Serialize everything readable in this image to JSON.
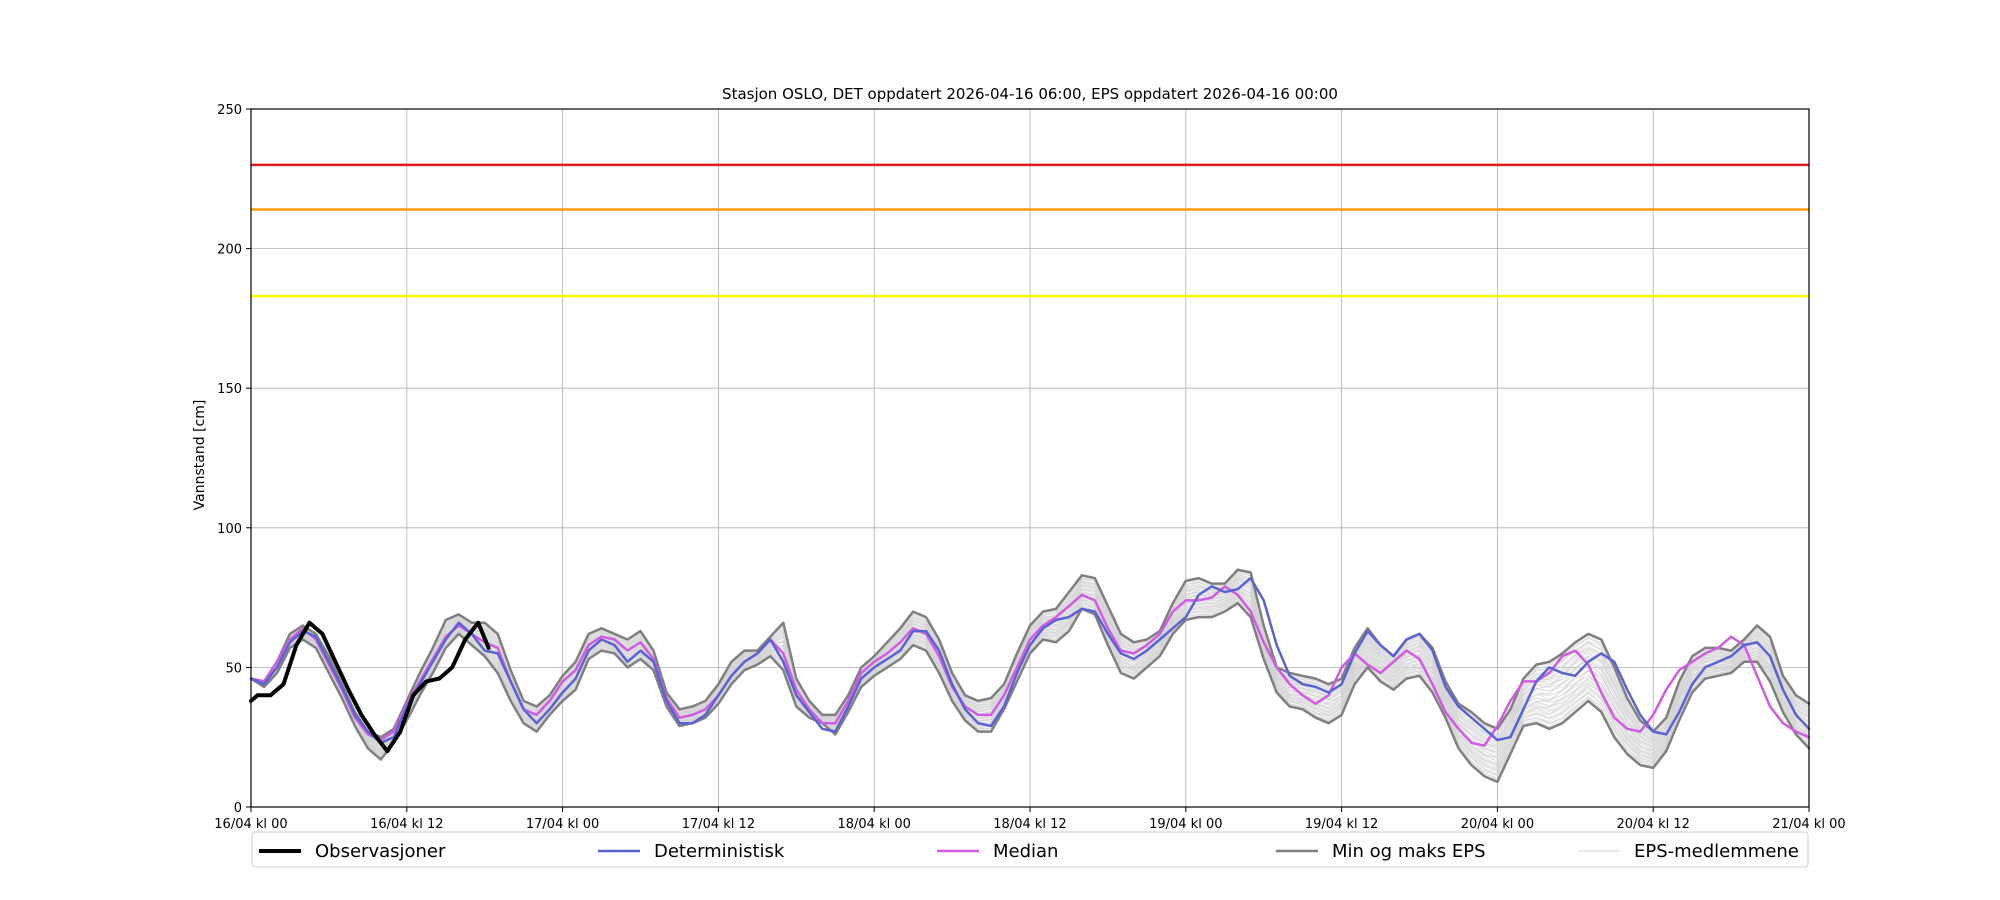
{
  "chart_data": {
    "type": "line",
    "title": "Stasjon OSLO, DET oppdatert 2026-04-16 06:00, EPS oppdatert 2026-04-16 00:00",
    "xlabel": "",
    "ylabel": "Vannstand [cm]",
    "ylim": [
      0,
      250
    ],
    "yticks": [
      0,
      50,
      100,
      150,
      200,
      250
    ],
    "xlim_hours": [
      0,
      120
    ],
    "x_unit": "hours",
    "xticks": [
      {
        "hour": 0,
        "label": "16/04 kl 00"
      },
      {
        "hour": 12,
        "label": "16/04 kl 12"
      },
      {
        "hour": 24,
        "label": "17/04 kl 00"
      },
      {
        "hour": 36,
        "label": "17/04 kl 12"
      },
      {
        "hour": 48,
        "label": "18/04 kl 00"
      },
      {
        "hour": 60,
        "label": "18/04 kl 12"
      },
      {
        "hour": 72,
        "label": "19/04 kl 00"
      },
      {
        "hour": 84,
        "label": "19/04 kl 12"
      },
      {
        "hour": 96,
        "label": "20/04 kl 00"
      },
      {
        "hour": 108,
        "label": "20/04 kl 12"
      },
      {
        "hour": 120,
        "label": "21/04 kl 00"
      }
    ],
    "grid": true,
    "legend_position": "bottom",
    "thresholds": [
      {
        "value": 230,
        "color": "#e31a1c"
      },
      {
        "value": 214,
        "color": "#ff9900"
      },
      {
        "value": 183,
        "color": "#ffff00"
      }
    ],
    "series": [
      {
        "name": "Observasjoner",
        "color": "#000000",
        "width": 4,
        "x": [
          0,
          0.5,
          1.5,
          2.5,
          3.5,
          4.5,
          5.5,
          6.5,
          7.5,
          8.5,
          9.5,
          10.5,
          11.5,
          12.5,
          13.5,
          14.5,
          15.5,
          16.5,
          17.5,
          18.3
        ],
        "values": [
          38,
          40,
          40,
          44,
          58,
          66,
          62,
          52,
          42,
          33,
          26,
          20,
          27,
          40,
          45,
          46,
          50,
          60,
          66,
          57
        ]
      },
      {
        "name": "Deterministisk",
        "color": "#5b63d4",
        "width": 2.5,
        "x": [
          0,
          1,
          2,
          3,
          4,
          5,
          6,
          7,
          8,
          9,
          10,
          11,
          12,
          13,
          14,
          15,
          16,
          17,
          18,
          19,
          20,
          21,
          22,
          23,
          24,
          25,
          26,
          27,
          28,
          29,
          30,
          31,
          32,
          33,
          34,
          35,
          36,
          37,
          38,
          39,
          40,
          41,
          42,
          43,
          44,
          45,
          46,
          47,
          48,
          49,
          50,
          51,
          52,
          53,
          54,
          55,
          56,
          57,
          58,
          59,
          60,
          61,
          62,
          63,
          64,
          65,
          66,
          67,
          68,
          69,
          70,
          71,
          72,
          73,
          74,
          75,
          76,
          77,
          78,
          79,
          80,
          81,
          82,
          83,
          84,
          85,
          86,
          87,
          88,
          89,
          90,
          91,
          92,
          93,
          94,
          95,
          96,
          97,
          98,
          99,
          100,
          101,
          102,
          103,
          104,
          105,
          106,
          107,
          108,
          109,
          110,
          111,
          112,
          113,
          114,
          115,
          116,
          117,
          118,
          119,
          120
        ],
        "values": [
          46,
          44,
          50,
          59,
          63,
          61,
          52,
          43,
          33,
          27,
          23,
          25,
          36,
          44,
          52,
          60,
          66,
          62,
          56,
          55,
          45,
          35,
          30,
          35,
          41,
          46,
          56,
          60,
          58,
          52,
          56,
          52,
          38,
          30,
          30,
          33,
          40,
          47,
          52,
          55,
          60,
          52,
          40,
          34,
          28,
          27,
          36,
          46,
          50,
          53,
          56,
          63,
          63,
          56,
          44,
          35,
          30,
          29,
          36,
          48,
          58,
          64,
          67,
          68,
          71,
          70,
          62,
          55,
          53,
          56,
          60,
          64,
          68,
          76,
          79,
          77,
          78,
          82,
          74,
          58,
          47,
          44,
          43,
          41,
          44,
          55,
          63,
          58,
          54,
          60,
          62,
          56,
          43,
          36,
          32,
          28,
          24,
          25,
          35,
          45,
          50,
          48,
          47,
          52,
          55,
          52,
          42,
          33,
          27,
          26,
          34,
          44,
          50,
          52,
          54,
          58,
          59,
          54,
          42,
          33,
          28
        ]
      },
      {
        "name": "Median",
        "color": "#d05ce3",
        "width": 2.5,
        "x": [
          0,
          1,
          2,
          3,
          4,
          5,
          6,
          7,
          8,
          9,
          10,
          11,
          12,
          13,
          14,
          15,
          16,
          17,
          18,
          19,
          20,
          21,
          22,
          23,
          24,
          25,
          26,
          27,
          28,
          29,
          30,
          31,
          32,
          33,
          34,
          35,
          36,
          37,
          38,
          39,
          40,
          41,
          42,
          43,
          44,
          45,
          46,
          47,
          48,
          49,
          50,
          51,
          52,
          53,
          54,
          55,
          56,
          57,
          58,
          59,
          60,
          61,
          62,
          63,
          64,
          65,
          66,
          67,
          68,
          69,
          70,
          71,
          72,
          73,
          74,
          75,
          76,
          77,
          78,
          79,
          80,
          81,
          82,
          83,
          84,
          85,
          86,
          87,
          88,
          89,
          90,
          91,
          92,
          93,
          94,
          95,
          96,
          97,
          98,
          99,
          100,
          101,
          102,
          103,
          104,
          105,
          106,
          107,
          108,
          109,
          110,
          111,
          112,
          113,
          114,
          115,
          116,
          117,
          118,
          119,
          120
        ],
        "values": [
          46,
          45,
          52,
          60,
          64,
          60,
          51,
          42,
          32,
          26,
          24,
          27,
          37,
          45,
          53,
          61,
          65,
          62,
          59,
          57,
          45,
          35,
          33,
          38,
          45,
          49,
          58,
          61,
          60,
          56,
          59,
          53,
          39,
          32,
          33,
          35,
          40,
          47,
          52,
          55,
          60,
          55,
          42,
          35,
          30,
          30,
          38,
          48,
          52,
          55,
          59,
          64,
          62,
          54,
          43,
          36,
          33,
          33,
          40,
          50,
          60,
          65,
          68,
          72,
          76,
          74,
          64,
          56,
          55,
          58,
          62,
          70,
          74,
          74,
          75,
          79,
          76,
          70,
          59,
          50,
          44,
          40,
          37,
          40,
          50,
          55,
          51,
          48,
          52,
          56,
          53,
          44,
          34,
          28,
          23,
          22,
          29,
          38,
          45,
          45,
          48,
          54,
          56,
          51,
          41,
          32,
          28,
          27,
          33,
          42,
          49,
          52,
          55,
          57,
          61,
          58,
          47,
          36,
          30,
          27,
          25
        ]
      },
      {
        "name": "Min og maks EPS",
        "color": "#808080",
        "width": 2.5,
        "x": [
          0,
          1,
          2,
          3,
          4,
          5,
          6,
          7,
          8,
          9,
          10,
          11,
          12,
          13,
          14,
          15,
          16,
          17,
          18,
          19,
          20,
          21,
          22,
          23,
          24,
          25,
          26,
          27,
          28,
          29,
          30,
          31,
          32,
          33,
          34,
          35,
          36,
          37,
          38,
          39,
          40,
          41,
          42,
          43,
          44,
          45,
          46,
          47,
          48,
          49,
          50,
          51,
          52,
          53,
          54,
          55,
          56,
          57,
          58,
          59,
          60,
          61,
          62,
          63,
          64,
          65,
          66,
          67,
          68,
          69,
          70,
          71,
          72,
          73,
          74,
          75,
          76,
          77,
          78,
          79,
          80,
          81,
          82,
          83,
          84,
          85,
          86,
          87,
          88,
          89,
          90,
          91,
          92,
          93,
          94,
          95,
          96,
          97,
          98,
          99,
          100,
          101,
          102,
          103,
          104,
          105,
          106,
          107,
          108,
          109,
          110,
          111,
          112,
          113,
          114,
          115,
          116,
          117,
          118,
          119,
          120
        ],
        "values": [
          46,
          45,
          52,
          62,
          65,
          62,
          54,
          44,
          34,
          27,
          25,
          28,
          38,
          48,
          57,
          67,
          69,
          66,
          66,
          62,
          49,
          38,
          36,
          40,
          47,
          52,
          62,
          64,
          62,
          60,
          63,
          56,
          41,
          35,
          36,
          38,
          44,
          52,
          56,
          56,
          61,
          66,
          46,
          38,
          33,
          33,
          40,
          50,
          54,
          59,
          64,
          70,
          68,
          60,
          48,
          40,
          38,
          39,
          44,
          55,
          65,
          70,
          71,
          77,
          83,
          82,
          72,
          62,
          59,
          60,
          63,
          73,
          81,
          82,
          80,
          80,
          85,
          84,
          65,
          50,
          48,
          47,
          46,
          44,
          46,
          57,
          64,
          58,
          54,
          60,
          62,
          57,
          45,
          37,
          34,
          30,
          28,
          35,
          46,
          51,
          52,
          55,
          59,
          62,
          60,
          50,
          39,
          31,
          27,
          32,
          45,
          54,
          57,
          57,
          56,
          60,
          65,
          61,
          47,
          40,
          37
        ]
      },
      {
        "name": "Min og maks EPS (min)",
        "color": "#808080",
        "width": 2.5,
        "legend": false,
        "x": [
          0,
          1,
          2,
          3,
          4,
          5,
          6,
          7,
          8,
          9,
          10,
          11,
          12,
          13,
          14,
          15,
          16,
          17,
          18,
          19,
          20,
          21,
          22,
          23,
          24,
          25,
          26,
          27,
          28,
          29,
          30,
          31,
          32,
          33,
          34,
          35,
          36,
          37,
          38,
          39,
          40,
          41,
          42,
          43,
          44,
          45,
          46,
          47,
          48,
          49,
          50,
          51,
          52,
          53,
          54,
          55,
          56,
          57,
          58,
          59,
          60,
          61,
          62,
          63,
          64,
          65,
          66,
          67,
          68,
          69,
          70,
          71,
          72,
          73,
          74,
          75,
          76,
          77,
          78,
          79,
          80,
          81,
          82,
          83,
          84,
          85,
          86,
          87,
          88,
          89,
          90,
          91,
          92,
          93,
          94,
          95,
          96,
          97,
          98,
          99,
          100,
          101,
          102,
          103,
          104,
          105,
          106,
          107,
          108,
          109,
          110,
          111,
          112,
          113,
          114,
          115,
          116,
          117,
          118,
          119,
          120
        ],
        "values": [
          46,
          43,
          48,
          57,
          60,
          57,
          48,
          39,
          29,
          21,
          17,
          23,
          31,
          40,
          48,
          57,
          62,
          58,
          54,
          48,
          38,
          30,
          27,
          33,
          38,
          42,
          53,
          56,
          55,
          50,
          53,
          49,
          36,
          29,
          30,
          32,
          37,
          44,
          49,
          51,
          54,
          49,
          36,
          32,
          30,
          26,
          34,
          43,
          47,
          50,
          53,
          58,
          56,
          48,
          38,
          31,
          27,
          27,
          35,
          45,
          55,
          60,
          59,
          63,
          71,
          69,
          58,
          48,
          46,
          50,
          54,
          62,
          67,
          68,
          68,
          70,
          73,
          68,
          53,
          41,
          36,
          35,
          32,
          30,
          33,
          44,
          50,
          45,
          42,
          46,
          47,
          41,
          32,
          21,
          15,
          11,
          9,
          19,
          29,
          30,
          28,
          30,
          34,
          38,
          34,
          25,
          19,
          15,
          14,
          20,
          31,
          41,
          46,
          47,
          48,
          52,
          52,
          45,
          34,
          26,
          21
        ]
      }
    ],
    "members_band": {
      "name": "EPS-medlemmene",
      "color": "#d3d3d3",
      "count": 50
    }
  }
}
